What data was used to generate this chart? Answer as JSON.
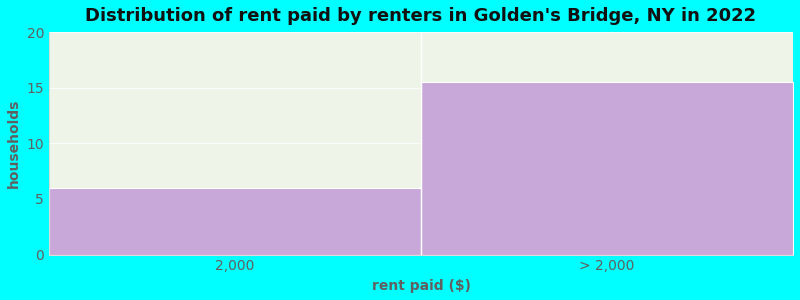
{
  "title": "Distribution of rent paid by renters in Golden's Bridge, NY in 2022",
  "categories": [
    "2,000",
    "> 2,000"
  ],
  "values": [
    6,
    15.5
  ],
  "bar_color": "#c8a8d8",
  "plot_bg_color": "#eef5e8",
  "fig_bg_color": "#00ffff",
  "xlabel": "rent paid ($)",
  "ylabel": "households",
  "ylim": [
    0,
    20
  ],
  "yticks": [
    0,
    5,
    10,
    15,
    20
  ],
  "title_fontsize": 13,
  "label_fontsize": 10,
  "tick_fontsize": 10,
  "label_color": "#606060",
  "title_color": "#111111",
  "bar_edge_color": "#ffffff",
  "spine_color": "#cccccc"
}
